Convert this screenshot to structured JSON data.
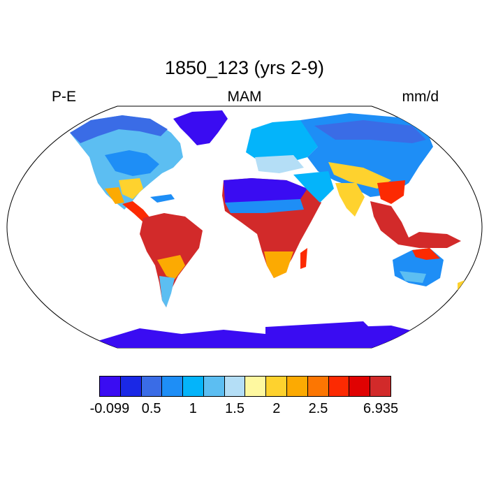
{
  "title": "1850_123 (yrs 2-9)",
  "left_label": "P-E",
  "center_label": "MAM",
  "right_label": "mm/d",
  "colorbar": {
    "colors": [
      "#3a0cf2",
      "#1a28e6",
      "#3a6ce6",
      "#1e8ef6",
      "#04b4fa",
      "#5cbef2",
      "#b4def6",
      "#fef8a0",
      "#fed22e",
      "#fcaa02",
      "#fc7602",
      "#fc2a02",
      "#e00202",
      "#d22a2a"
    ],
    "tick_labels": [
      {
        "text": "-0.099",
        "index": 0
      },
      {
        "text": "0.5",
        "index": 2
      },
      {
        "text": "1",
        "index": 4
      },
      {
        "text": "1.5",
        "index": 6
      },
      {
        "text": "2",
        "index": 8
      },
      {
        "text": "2.5",
        "index": 10
      },
      {
        "text": "6.935",
        "index": 13
      }
    ]
  }
}
